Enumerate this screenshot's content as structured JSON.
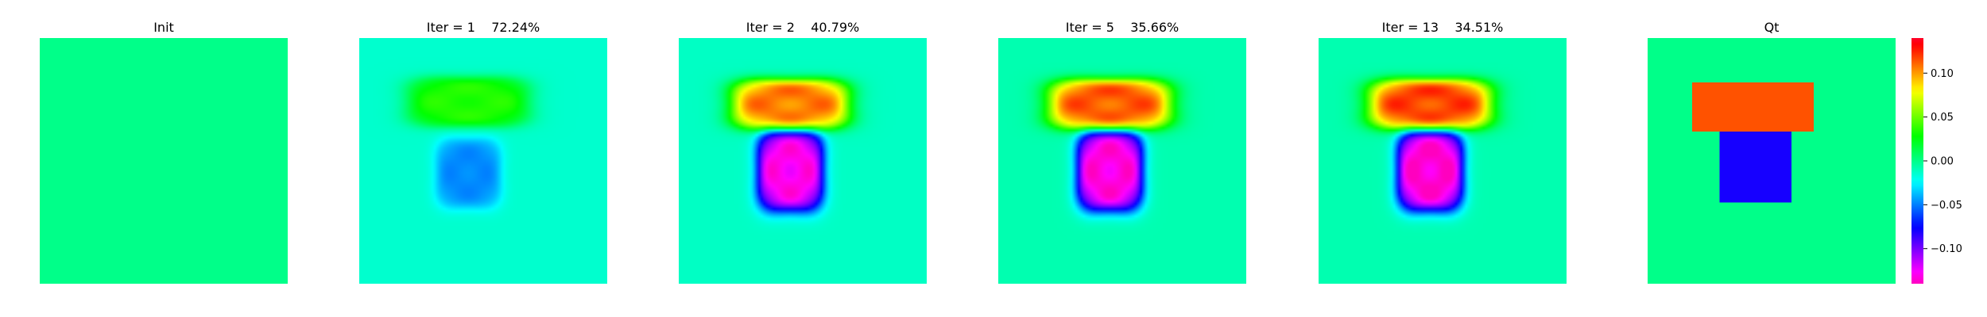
{
  "chart_data": {
    "type": "heatmap",
    "colormap": "gist_rainbow_r",
    "colorbar": {
      "range": [
        -0.14,
        0.14
      ],
      "ticks": [
        0.1,
        0.05,
        0.0,
        -0.05,
        -0.1
      ],
      "tick_labels": [
        "0.10",
        "0.05",
        "0.00",
        "−0.05",
        "−0.10"
      ]
    },
    "panels": [
      {
        "title": "Init",
        "background": 0.0,
        "fields": []
      },
      {
        "title": "Iter = 1    72.24%",
        "background": -0.014,
        "fields": [
          {
            "name": "upper-block",
            "cx": 0.44,
            "cy": 0.26,
            "rx": 0.24,
            "ry": 0.1,
            "value": 0.035
          },
          {
            "name": "lower-block",
            "cx": 0.44,
            "cy": 0.55,
            "rx": 0.13,
            "ry": 0.14,
            "value": -0.048
          }
        ]
      },
      {
        "title": "Iter = 2    40.79%",
        "background": -0.012,
        "fields": [
          {
            "name": "upper-block",
            "cx": 0.45,
            "cy": 0.27,
            "rx": 0.23,
            "ry": 0.1,
            "value": 0.108
          },
          {
            "name": "lower-block",
            "cx": 0.45,
            "cy": 0.54,
            "rx": 0.13,
            "ry": 0.16,
            "value": -0.132
          }
        ]
      },
      {
        "title": "Iter = 5    35.66%",
        "background": -0.008,
        "fields": [
          {
            "name": "upper-block",
            "cx": 0.45,
            "cy": 0.27,
            "rx": 0.24,
            "ry": 0.1,
            "value": 0.115
          },
          {
            "name": "lower-block",
            "cx": 0.45,
            "cy": 0.54,
            "rx": 0.13,
            "ry": 0.16,
            "value": -0.135
          }
        ]
      },
      {
        "title": "Iter = 13    34.51%",
        "background": -0.008,
        "fields": [
          {
            "name": "upper-block",
            "cx": 0.45,
            "cy": 0.27,
            "rx": 0.24,
            "ry": 0.1,
            "value": 0.12
          },
          {
            "name": "lower-block",
            "cx": 0.45,
            "cy": 0.54,
            "rx": 0.13,
            "ry": 0.16,
            "value": -0.138
          }
        ]
      },
      {
        "title": "Qt",
        "background": 0.0,
        "fields": [
          {
            "name": "upper-block",
            "x0": 0.18,
            "x1": 0.67,
            "y0": 0.18,
            "y1": 0.38,
            "value": 0.115,
            "shape": "rect"
          },
          {
            "name": "lower-block",
            "x0": 0.29,
            "x1": 0.58,
            "y0": 0.38,
            "y1": 0.67,
            "value": -0.08,
            "shape": "rect"
          }
        ]
      }
    ]
  }
}
